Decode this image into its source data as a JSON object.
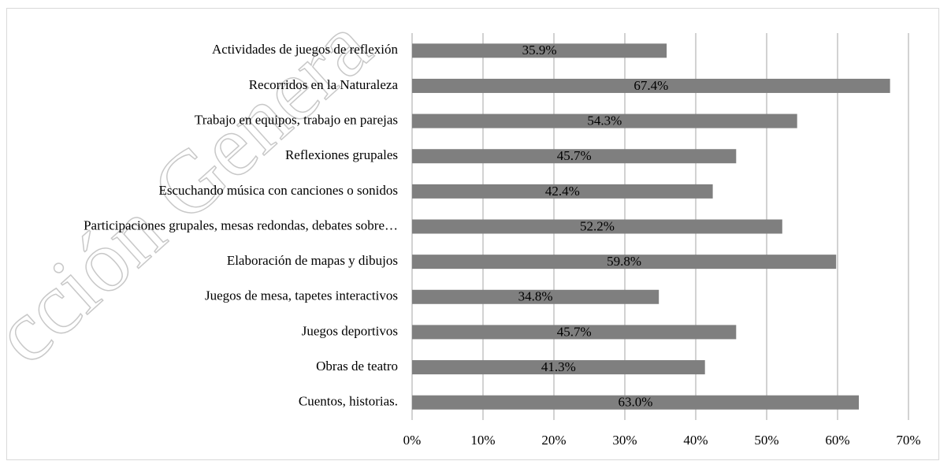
{
  "watermark": "cción Genera",
  "chart_data": {
    "type": "bar",
    "orientation": "horizontal",
    "categories": [
      "Actividades de juegos de reflexión",
      "Recorridos en la Naturaleza",
      "Trabajo en equipos, trabajo en parejas",
      "Reflexiones grupales",
      "Escuchando música con canciones o sonidos",
      "Participaciones grupales, mesas redondas, debates sobre…",
      "Elaboración de mapas y dibujos",
      "Juegos de mesa, tapetes interactivos",
      "Juegos deportivos",
      "Obras de teatro",
      "Cuentos, historias."
    ],
    "values": [
      35.9,
      67.4,
      54.3,
      45.7,
      42.4,
      52.2,
      59.8,
      34.8,
      45.7,
      41.3,
      63.0
    ],
    "value_labels": [
      "35.9%",
      "67.4%",
      "54.3%",
      "45.7%",
      "42.4%",
      "52.2%",
      "59.8%",
      "34.8%",
      "45.7%",
      "41.3%",
      "63.0%"
    ],
    "color": "#7f7f7f",
    "xlim": [
      0,
      70
    ],
    "xticks": [
      {
        "value": 0,
        "label": "0%"
      },
      {
        "value": 10,
        "label": "10%"
      },
      {
        "value": 20,
        "label": "20%"
      },
      {
        "value": 30,
        "label": "30%"
      },
      {
        "value": 40,
        "label": "40%"
      },
      {
        "value": 50,
        "label": "50%"
      },
      {
        "value": 60,
        "label": "60%"
      },
      {
        "value": 70,
        "label": "70%"
      }
    ],
    "grid": true
  }
}
